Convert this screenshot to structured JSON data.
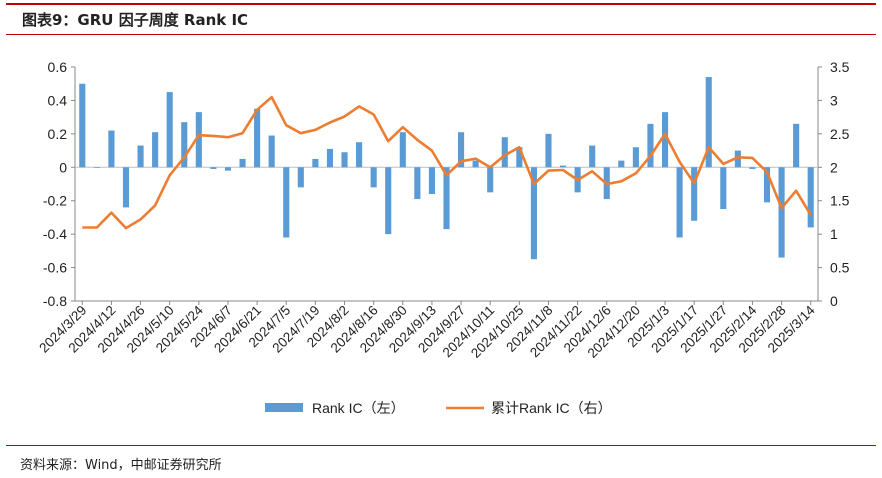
{
  "title": "图表9：GRU 因子周度 Rank IC",
  "source": "资料来源：Wind，中邮证券研究所",
  "colors": {
    "bar": "#5b9bd5",
    "line": "#ed7d31",
    "rule": "#c0000b"
  },
  "chart_data": {
    "type": "bar",
    "categories": [
      "2024/3/29",
      "2024/4/5",
      "2024/4/12",
      "2024/4/19",
      "2024/4/26",
      "2024/5/3",
      "2024/5/10",
      "2024/5/17",
      "2024/5/24",
      "2024/5/31",
      "2024/6/7",
      "2024/6/14",
      "2024/6/21",
      "2024/6/28",
      "2024/7/5",
      "2024/7/12",
      "2024/7/19",
      "2024/7/26",
      "2024/8/2",
      "2024/8/9",
      "2024/8/16",
      "2024/8/23",
      "2024/8/30",
      "2024/9/6",
      "2024/9/13",
      "2024/9/20",
      "2024/9/27",
      "2024/10/4",
      "2024/10/11",
      "2024/10/18",
      "2024/10/25",
      "2024/11/1",
      "2024/11/8",
      "2024/11/15",
      "2024/11/22",
      "2024/11/29",
      "2024/12/6",
      "2024/12/13",
      "2024/12/20",
      "2024/12/27",
      "2025/1/3",
      "2025/1/10",
      "2025/1/17",
      "2025/1/24",
      "2025/1/27",
      "2025/2/7",
      "2025/2/14",
      "2025/2/21",
      "2025/2/28",
      "2025/3/7",
      "2025/3/14"
    ],
    "x_tick_labels": [
      "2024/3/29",
      "2024/4/12",
      "2024/4/26",
      "2024/5/10",
      "2024/5/24",
      "2024/6/7",
      "2024/6/21",
      "2024/7/5",
      "2024/7/19",
      "2024/8/2",
      "2024/8/16",
      "2024/8/30",
      "2024/9/13",
      "2024/9/27",
      "2024/10/11",
      "2024/10/25",
      "2024/11/8",
      "2024/11/22",
      "2024/12/6",
      "2024/12/20",
      "2025/1/3",
      "2025/1/17",
      "2025/1/27",
      "2025/2/14",
      "2025/2/28",
      "2025/3/14"
    ],
    "series": [
      {
        "name": "Rank IC（左）",
        "type": "bar",
        "axis": "left",
        "values": [
          0.5,
          0.0,
          0.22,
          -0.24,
          0.13,
          0.21,
          0.45,
          0.27,
          0.33,
          -0.01,
          -0.02,
          0.05,
          0.35,
          0.19,
          -0.42,
          -0.12,
          0.05,
          0.11,
          0.09,
          0.15,
          -0.12,
          -0.4,
          0.21,
          -0.19,
          -0.16,
          -0.37,
          0.21,
          0.04,
          -0.15,
          0.18,
          0.12,
          -0.55,
          0.2,
          0.01,
          -0.15,
          0.13,
          -0.19,
          0.04,
          0.12,
          0.26,
          0.33,
          -0.42,
          -0.32,
          0.54,
          -0.25,
          0.1,
          -0.01,
          -0.21,
          -0.54,
          0.26,
          -0.36
        ]
      },
      {
        "name": "累计Rank IC（右）",
        "type": "line",
        "axis": "right",
        "values": [
          1.1,
          1.1,
          1.32,
          1.09,
          1.22,
          1.43,
          1.88,
          2.15,
          2.48,
          2.47,
          2.45,
          2.51,
          2.86,
          3.05,
          2.63,
          2.51,
          2.56,
          2.67,
          2.76,
          2.91,
          2.79,
          2.39,
          2.6,
          2.41,
          2.25,
          1.88,
          2.09,
          2.13,
          2.0,
          2.18,
          2.3,
          1.75,
          1.95,
          1.96,
          1.81,
          1.94,
          1.75,
          1.79,
          1.91,
          2.17,
          2.5,
          2.08,
          1.76,
          2.3,
          2.05,
          2.15,
          2.14,
          1.93,
          1.39,
          1.65,
          1.29
        ]
      }
    ],
    "y_left": {
      "min": -0.8,
      "max": 0.6,
      "ticks": [
        "-0.8",
        "-0.6",
        "-0.4",
        "-0.2",
        "0",
        "0.2",
        "0.4",
        "0.6"
      ]
    },
    "y_right": {
      "min": 0,
      "max": 3.5,
      "ticks": [
        "0",
        "0.5",
        "1",
        "1.5",
        "2",
        "2.5",
        "3",
        "3.5"
      ]
    },
    "legend": {
      "position": "bottom",
      "items": [
        "Rank IC（左）",
        "累计Rank IC（右）"
      ]
    },
    "grid": false
  }
}
